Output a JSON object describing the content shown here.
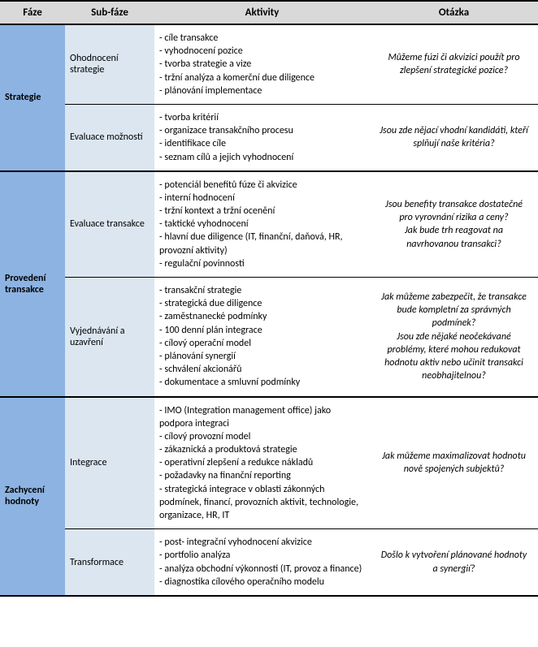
{
  "headers": {
    "phase": "Fáze",
    "sub": "Sub-fáze",
    "act": "Aktivity",
    "q": "Otázka"
  },
  "phases": [
    {
      "name": "Strategie",
      "subs": [
        {
          "name": "Ohodnocení strategie",
          "activities": [
            "cíle transakce",
            "vyhodnocení pozice",
            "tvorba strategie a vize",
            "tržní analýza a komerční due diligence",
            "plánování implementace"
          ],
          "question": "Můžeme fúzi či akvizici použít pro zlepšení strategické pozice?"
        },
        {
          "name": "Evaluace možností",
          "activities": [
            "tvorba kritérií",
            "organizace transakčního procesu",
            "identifikace cíle",
            "seznam cílů a jejich vyhodnocení"
          ],
          "question": "Jsou zde nějací vhodní kandidáti, kteří splňují naše kritéria?"
        }
      ]
    },
    {
      "name": "Provedení transakce",
      "subs": [
        {
          "name": "Evaluace transakce",
          "activities": [
            "potenciál benefitů fúze či akvizice",
            "interní hodnocení",
            "tržní kontext a tržní ocenění",
            "taktické vyhodnocení",
            "hlavní due diligence (IT, finanční, daňová, HR, provozní aktivity)",
            "regulační povinnosti"
          ],
          "question": "Jsou benefity transakce dostatečné pro vyrovnání rizika a ceny?\nJak bude trh reagovat na navrhovanou transakci?"
        },
        {
          "name": "Vyjednávání a uzavření",
          "activities": [
            "transakční strategie",
            "strategická due diligence",
            "zaměstnanecké podmínky",
            "100 denní plán integrace",
            "cílový operační model",
            "plánování synergií",
            "schválení akcionářů",
            "dokumentace a smluvní podmínky"
          ],
          "question": "Jak můžeme zabezpečit, že transakce bude kompletní za správných podmínek?\nJsou zde nějaké neočekávané problémy, které mohou redukovat hodnotu aktiv nebo učinit transakci neobhajitelnou?"
        }
      ]
    },
    {
      "name": "Zachycení hodnoty",
      "subs": [
        {
          "name": "Integrace",
          "activities": [
            "IMO (Integration management office) jako podpora integraci",
            "cílový provozní model",
            "zákaznická a produktová strategie",
            "operativní zlepšení a redukce nákladů",
            "požadavky na finanční reporting",
            "strategická integrace v oblasti zákonných podmínek, financí, provozních aktivit, technologie, organizace, HR, IT"
          ],
          "question": "Jak můžeme maximalizovat hodnotu nově spojených subjektů?"
        },
        {
          "name": "Transformace",
          "activities": [
            "post- integrační vyhodnocení akvizice",
            "portfolio analýza",
            "analýza obchodní výkonnosti (IT, provoz a finance)",
            "diagnostika cílového operačního modelu"
          ],
          "question": "Došlo k vytvoření plánované hodnoty a synergií?"
        }
      ]
    }
  ]
}
